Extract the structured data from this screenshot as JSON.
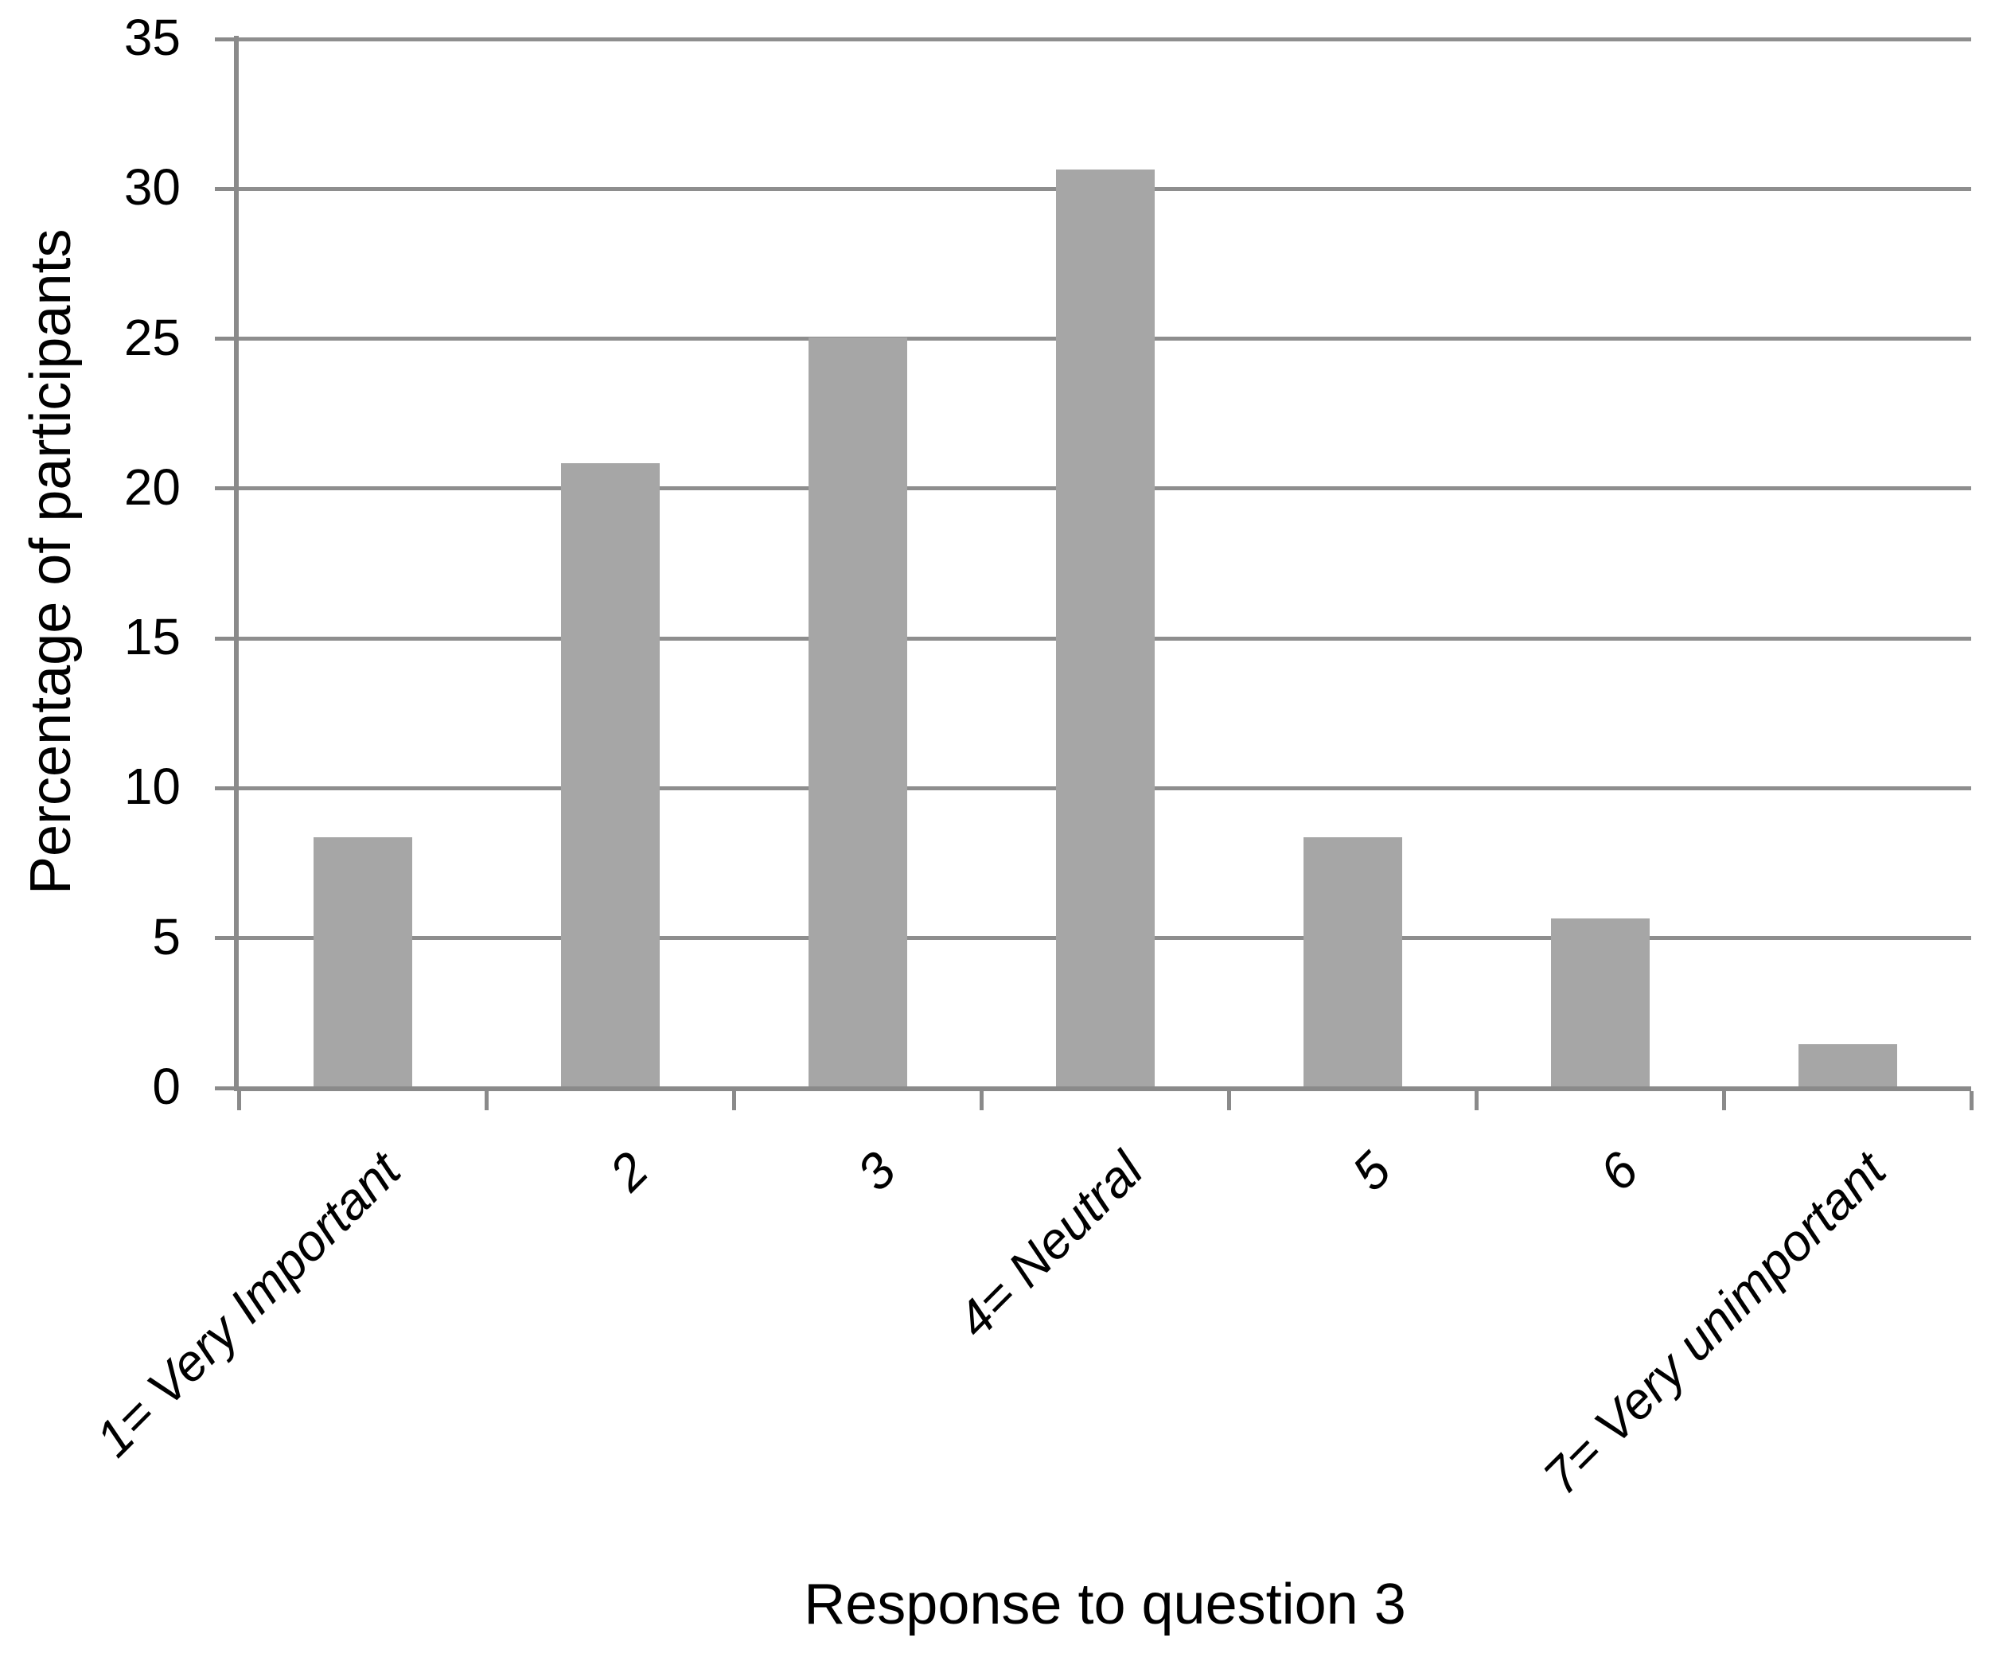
{
  "chart_data": {
    "type": "bar",
    "categories": [
      "1= Very Important",
      "2",
      "3",
      "4= Neutral",
      "5",
      "6",
      "7= Very unimportant"
    ],
    "values": [
      8.3,
      20.8,
      25,
      30.6,
      8.3,
      5.6,
      1.4
    ],
    "title": "",
    "xlabel": "Response to question 3",
    "ylabel": "Percentage of participants",
    "ylim": [
      0,
      35
    ],
    "yticks": [
      0,
      5,
      10,
      15,
      20,
      25,
      30,
      35
    ],
    "legend_position": "none",
    "grid": "on",
    "bar_color": "#a6a6a6",
    "grid_color": "#8e8e8e",
    "axis_color": "#8a8a8a",
    "text_color": "#000000"
  }
}
